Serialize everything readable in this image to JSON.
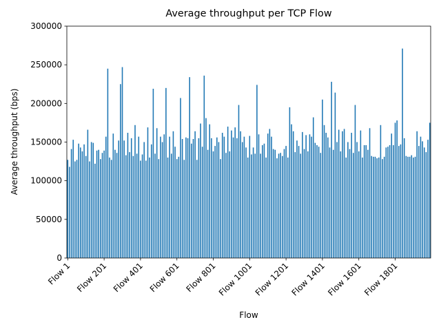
{
  "chart_data": {
    "type": "bar",
    "title": "Average throughput per TCP Flow",
    "x_label": "Flow",
    "y_label": "Average throughput (bps)",
    "color": "#1f77b4",
    "categories": [
      "Flow 1",
      null,
      null,
      null,
      null,
      null,
      null,
      null,
      null,
      null,
      null,
      null,
      null,
      null,
      null,
      null,
      null,
      null,
      null,
      null,
      "Flow 201",
      null,
      null,
      null,
      null,
      null,
      null,
      null,
      null,
      null,
      null,
      null,
      null,
      null,
      null,
      null,
      null,
      null,
      null,
      null,
      "Flow 401",
      null,
      null,
      null,
      null,
      null,
      null,
      null,
      null,
      null,
      null,
      null,
      null,
      null,
      null,
      null,
      null,
      null,
      null,
      null,
      "Flow 601",
      null,
      null,
      null,
      null,
      null,
      null,
      null,
      null,
      null,
      null,
      null,
      null,
      null,
      null,
      null,
      null,
      null,
      null,
      null,
      "Flow 801",
      null,
      null,
      null,
      null,
      null,
      null,
      null,
      null,
      null,
      null,
      null,
      null,
      null,
      null,
      null,
      null,
      null,
      null,
      null,
      "Flow 1001",
      null,
      null,
      null,
      null,
      null,
      null,
      null,
      null,
      null,
      null,
      null,
      null,
      null,
      null,
      null,
      null,
      null,
      null,
      null,
      "Flow 1201",
      null,
      null,
      null,
      null,
      null,
      null,
      null,
      null,
      null,
      null,
      null,
      null,
      null,
      null,
      null,
      null,
      null,
      null,
      null,
      "Flow 1401",
      null,
      null,
      null,
      null,
      null,
      null,
      null,
      null,
      null,
      null,
      null,
      null,
      null,
      null,
      null,
      null,
      null,
      null,
      null,
      "Flow 1601",
      null,
      null,
      null,
      null,
      null,
      null,
      null,
      null,
      null,
      null,
      null,
      null,
      null,
      null,
      null,
      null,
      null,
      null,
      null,
      "Flow 1801",
      null,
      null,
      null,
      null,
      null,
      null,
      null,
      null,
      null,
      null,
      null,
      null,
      null,
      null,
      null,
      null,
      null,
      null,
      null
    ],
    "values": [
      127000,
      118000,
      141000,
      153000,
      125000,
      127000,
      148000,
      143000,
      138000,
      147000,
      132000,
      166000,
      125000,
      150000,
      149000,
      122000,
      139000,
      140000,
      128000,
      136000,
      139000,
      157000,
      245000,
      130000,
      127000,
      161000,
      140000,
      136000,
      152000,
      225000,
      247000,
      152000,
      133000,
      162000,
      137000,
      155000,
      132000,
      172000,
      135000,
      157000,
      126000,
      134000,
      150000,
      126000,
      169000,
      130000,
      147000,
      219000,
      135000,
      168000,
      128000,
      157000,
      150000,
      160000,
      220000,
      130000,
      157000,
      135000,
      164000,
      144000,
      128000,
      131000,
      207000,
      154000,
      127000,
      156000,
      155000,
      234000,
      148000,
      154000,
      164000,
      127000,
      155000,
      174000,
      144000,
      236000,
      181000,
      140000,
      173000,
      155000,
      138000,
      145000,
      156000,
      150000,
      128000,
      162000,
      157000,
      136000,
      170000,
      138000,
      165000,
      156000,
      169000,
      155000,
      198000,
      164000,
      150000,
      157000,
      143000,
      130000,
      158000,
      134000,
      143000,
      135000,
      224000,
      160000,
      135000,
      146000,
      148000,
      130000,
      161000,
      167000,
      157000,
      141000,
      140000,
      129000,
      135000,
      136000,
      132000,
      141000,
      145000,
      130000,
      195000,
      173000,
      164000,
      137000,
      152000,
      145000,
      135000,
      163000,
      141000,
      159000,
      138000,
      160000,
      157000,
      182000,
      149000,
      146000,
      144000,
      136000,
      205000,
      172000,
      162000,
      156000,
      143000,
      228000,
      140000,
      214000,
      150000,
      166000,
      138000,
      164000,
      167000,
      130000,
      150000,
      141000,
      162000,
      136000,
      198000,
      150000,
      138000,
      165000,
      130000,
      146000,
      146000,
      140000,
      168000,
      132000,
      131000,
      131000,
      129000,
      130000,
      172000,
      128000,
      131000,
      143000,
      144000,
      146000,
      161000,
      146000,
      175000,
      178000,
      145000,
      147000,
      271000,
      155000,
      132000,
      131000,
      131000,
      133000,
      130000,
      131000,
      164000,
      145000,
      157000,
      151000,
      143000,
      137000,
      153000,
      175000
    ],
    "ylim": [
      0,
      300000
    ],
    "yticks": [
      0,
      50000,
      100000,
      150000,
      200000,
      250000,
      300000
    ]
  }
}
